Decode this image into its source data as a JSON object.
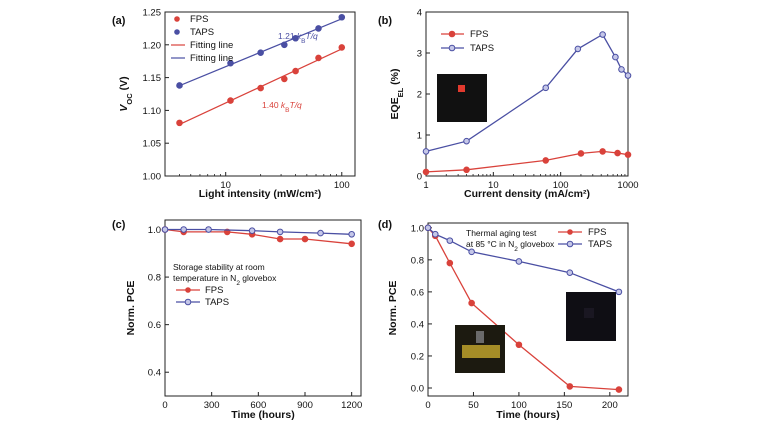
{
  "colors": {
    "fps": "#d9423b",
    "taps": "#4a4fa3",
    "axis": "#222222"
  },
  "chart_data": [
    {
      "id": "a",
      "panel_label": "(a)",
      "type": "scatter",
      "xscale": "log",
      "xlabel": "Light intensity (mW/cm²)",
      "ylabel_main": "V",
      "ylabel_sub": "OC",
      "ylabel_unit": " (V)",
      "xlim": [
        3,
        130
      ],
      "ylim": [
        1.0,
        1.25
      ],
      "xticks": [
        {
          "v": 10,
          "label": "10"
        },
        {
          "v": 100,
          "label": "100"
        }
      ],
      "yticks": [
        {
          "v": 1.0,
          "label": "1.00"
        },
        {
          "v": 1.05,
          "label": "1.05"
        },
        {
          "v": 1.1,
          "label": "1.10"
        },
        {
          "v": 1.15,
          "label": "1.15"
        },
        {
          "v": 1.2,
          "label": "1.20"
        },
        {
          "v": 1.25,
          "label": "1.25"
        }
      ],
      "legend": [
        {
          "label": "FPS",
          "kind": "marker",
          "color": "#d9423b"
        },
        {
          "label": "TAPS",
          "kind": "marker",
          "color": "#4a4fa3"
        },
        {
          "label": "Fitting line",
          "kind": "line",
          "color": "#d9423b"
        },
        {
          "label": "Fitting line",
          "kind": "line",
          "color": "#4a4fa3"
        }
      ],
      "annotations": [
        {
          "text_pre": "1.21 ",
          "text_k": "k",
          "text_sub": "B",
          "text_post": "T/q",
          "color": "#4a4fa3"
        },
        {
          "text_pre": "1.40 ",
          "text_k": "k",
          "text_sub": "B",
          "text_post": "T/q",
          "color": "#d9423b"
        }
      ],
      "series": [
        {
          "name": "FPS",
          "color": "#d9423b",
          "marker": "circle",
          "line": "fit",
          "x": [
            4,
            11,
            20,
            32,
            40,
            63,
            100
          ],
          "y": [
            1.081,
            1.115,
            1.134,
            1.148,
            1.16,
            1.18,
            1.196
          ]
        },
        {
          "name": "TAPS",
          "color": "#4a4fa3",
          "marker": "circle",
          "line": "fit",
          "x": [
            4,
            11,
            20,
            32,
            40,
            63,
            100
          ],
          "y": [
            1.138,
            1.172,
            1.188,
            1.2,
            1.21,
            1.225,
            1.242
          ]
        }
      ]
    },
    {
      "id": "b",
      "panel_label": "(b)",
      "type": "line",
      "xscale": "log",
      "xlabel": "Current density (mA/cm²)",
      "ylabel_main": "EQE",
      "ylabel_sub": "EL",
      "ylabel_unit": " (%)",
      "xlim": [
        1,
        1000
      ],
      "ylim": [
        0,
        4
      ],
      "xticks": [
        {
          "v": 1,
          "label": "1"
        },
        {
          "v": 10,
          "label": "10"
        },
        {
          "v": 100,
          "label": "100"
        },
        {
          "v": 1000,
          "label": "1000"
        }
      ],
      "yticks": [
        {
          "v": 0,
          "label": "0"
        },
        {
          "v": 1,
          "label": "1"
        },
        {
          "v": 2,
          "label": "2"
        },
        {
          "v": 3,
          "label": "3"
        },
        {
          "v": 4,
          "label": "4"
        }
      ],
      "legend": [
        {
          "label": "FPS",
          "kind": "lineMarker",
          "color": "#d9423b"
        },
        {
          "label": "TAPS",
          "kind": "lineMarker",
          "color": "#4a4fa3"
        }
      ],
      "series": [
        {
          "name": "FPS",
          "color": "#d9423b",
          "marker": "circle",
          "line": "connect",
          "x": [
            1,
            4,
            60,
            200,
            420,
            700,
            1000
          ],
          "y": [
            0.1,
            0.15,
            0.38,
            0.55,
            0.6,
            0.56,
            0.52
          ]
        },
        {
          "name": "TAPS",
          "color": "#4a4fa3",
          "marker": "circle",
          "line": "connect",
          "x": [
            1,
            4,
            60,
            180,
            420,
            650,
            800,
            1000
          ],
          "y": [
            0.6,
            0.85,
            2.15,
            3.1,
            3.45,
            2.9,
            2.6,
            2.45
          ]
        }
      ]
    },
    {
      "id": "c",
      "panel_label": "(c)",
      "type": "line",
      "xscale": "linear",
      "xlabel": "Time (hours)",
      "ylabel_main": "Norm. PCE",
      "ylabel_sub": "",
      "ylabel_unit": "",
      "xlim": [
        0,
        1260
      ],
      "ylim": [
        0.3,
        1.04
      ],
      "xticks": [
        {
          "v": 0,
          "label": "0"
        },
        {
          "v": 300,
          "label": "300"
        },
        {
          "v": 600,
          "label": "600"
        },
        {
          "v": 900,
          "label": "900"
        },
        {
          "v": 1200,
          "label": "1200"
        }
      ],
      "yticks": [
        {
          "v": 0.4,
          "label": "0.4"
        },
        {
          "v": 0.6,
          "label": "0.6"
        },
        {
          "v": 0.8,
          "label": "0.8"
        },
        {
          "v": 1.0,
          "label": "1.0"
        }
      ],
      "annotations_lines": [
        {
          "text": "Storage stability at room"
        },
        {
          "text_pre": "temperature in N",
          "text_sub": "2",
          "text_post": " glovebox"
        }
      ],
      "legend": [
        {
          "label": "FPS",
          "kind": "lineMarker",
          "color": "#d9423b"
        },
        {
          "label": "TAPS",
          "kind": "lineMarker",
          "color": "#4a4fa3"
        }
      ],
      "series": [
        {
          "name": "FPS",
          "color": "#d9423b",
          "marker": "circle",
          "line": "connect",
          "x": [
            0,
            120,
            400,
            560,
            740,
            900,
            1200
          ],
          "y": [
            1.0,
            0.99,
            0.99,
            0.98,
            0.96,
            0.96,
            0.94
          ]
        },
        {
          "name": "TAPS",
          "color": "#4a4fa3",
          "marker": "circle",
          "line": "connect",
          "x": [
            0,
            120,
            280,
            560,
            740,
            1000,
            1200
          ],
          "y": [
            1.0,
            1.0,
            1.0,
            0.995,
            0.99,
            0.985,
            0.98
          ]
        }
      ]
    },
    {
      "id": "d",
      "panel_label": "(d)",
      "type": "line",
      "xscale": "linear",
      "xlabel": "Time (hours)",
      "ylabel_main": "Norm. PCE",
      "ylabel_sub": "",
      "ylabel_unit": "",
      "xlim": [
        0,
        220
      ],
      "ylim": [
        -0.05,
        1.03
      ],
      "xticks": [
        {
          "v": 0,
          "label": "0"
        },
        {
          "v": 50,
          "label": "50"
        },
        {
          "v": 100,
          "label": "100"
        },
        {
          "v": 150,
          "label": "150"
        },
        {
          "v": 200,
          "label": "200"
        }
      ],
      "yticks": [
        {
          "v": 0.0,
          "label": "0.0"
        },
        {
          "v": 0.2,
          "label": "0.2"
        },
        {
          "v": 0.4,
          "label": "0.4"
        },
        {
          "v": 0.6,
          "label": "0.6"
        },
        {
          "v": 0.8,
          "label": "0.8"
        },
        {
          "v": 1.0,
          "label": "1.0"
        }
      ],
      "annotations_lines": [
        {
          "text": "Thermal aging test"
        },
        {
          "text_pre": "at 85 °C  in N",
          "text_sub": "2",
          "text_post": " glovebox"
        }
      ],
      "legend": [
        {
          "label": "FPS",
          "kind": "lineMarker",
          "color": "#d9423b"
        },
        {
          "label": "TAPS",
          "kind": "lineMarker",
          "color": "#4a4fa3"
        }
      ],
      "series": [
        {
          "name": "FPS",
          "color": "#d9423b",
          "marker": "circle",
          "line": "connect",
          "x": [
            0,
            8,
            24,
            48,
            100,
            156,
            210
          ],
          "y": [
            1.0,
            0.95,
            0.78,
            0.53,
            0.27,
            0.01,
            -0.01
          ]
        },
        {
          "name": "TAPS",
          "color": "#4a4fa3",
          "marker": "circle",
          "line": "connect",
          "x": [
            0,
            8,
            24,
            48,
            100,
            156,
            210
          ],
          "y": [
            1.0,
            0.96,
            0.92,
            0.85,
            0.79,
            0.72,
            0.6
          ]
        }
      ]
    }
  ]
}
